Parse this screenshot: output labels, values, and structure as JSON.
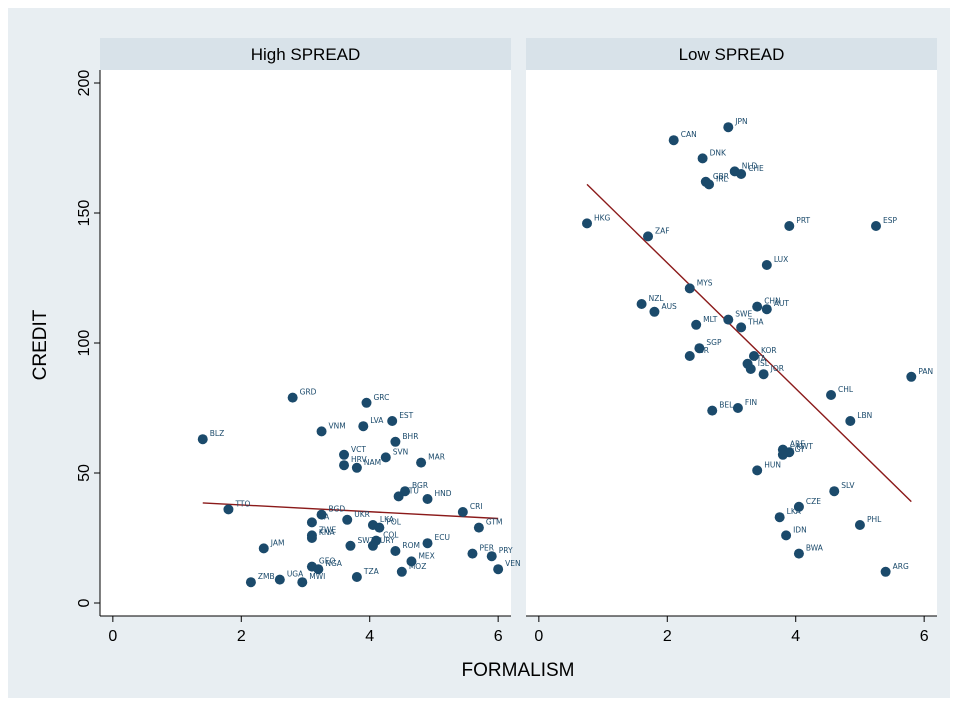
{
  "colors": {
    "figure_bg": "#e8eef2",
    "strip_bg": "#d8e2e9",
    "panel_bg": "#ffffff",
    "marker": "#1b4a6b",
    "label_text": "#1b4a6b",
    "fit_line": "#8b1a1a",
    "axis": "#000000"
  },
  "chart_data": {
    "type": "scatter",
    "xlabel": "FORMALISM",
    "ylabel": "CREDIT",
    "xlim": [
      -0.2,
      6.2
    ],
    "ylim": [
      -5,
      205
    ],
    "xticks": [
      "0",
      "2",
      "4",
      "6"
    ],
    "yticks": [
      "0",
      "50",
      "100",
      "150",
      "200"
    ],
    "grid": false,
    "legend": "none",
    "panels": [
      {
        "title": "High SPREAD",
        "fit_line": {
          "x": [
            1.4,
            6.0
          ],
          "y": [
            38.5,
            32.5
          ]
        },
        "points": [
          {
            "label": "GRD",
            "x": 2.8,
            "y": 79
          },
          {
            "label": "GRC",
            "x": 3.95,
            "y": 77
          },
          {
            "label": "BLZ",
            "x": 1.4,
            "y": 63
          },
          {
            "label": "VNM",
            "x": 3.25,
            "y": 66
          },
          {
            "label": "LVA",
            "x": 3.9,
            "y": 68
          },
          {
            "label": "EST",
            "x": 4.35,
            "y": 70
          },
          {
            "label": "BHR",
            "x": 4.4,
            "y": 62
          },
          {
            "label": "VCT",
            "x": 3.6,
            "y": 57
          },
          {
            "label": "SVN",
            "x": 4.25,
            "y": 56
          },
          {
            "label": "HRV",
            "x": 3.6,
            "y": 53
          },
          {
            "label": "NAM",
            "x": 3.8,
            "y": 52
          },
          {
            "label": "MAR",
            "x": 4.8,
            "y": 54
          },
          {
            "label": "TTO",
            "x": 1.8,
            "y": 36
          },
          {
            "label": "BGR",
            "x": 4.55,
            "y": 43
          },
          {
            "label": "LTU",
            "x": 4.45,
            "y": 41
          },
          {
            "label": "HND",
            "x": 4.9,
            "y": 40
          },
          {
            "label": "CRI",
            "x": 5.45,
            "y": 35
          },
          {
            "label": "BGD",
            "x": 3.25,
            "y": 34
          },
          {
            "label": "CA",
            "x": 3.1,
            "y": 31
          },
          {
            "label": "UKR",
            "x": 3.65,
            "y": 32
          },
          {
            "label": "LKA",
            "x": 4.05,
            "y": 30
          },
          {
            "label": "POL",
            "x": 4.15,
            "y": 29
          },
          {
            "label": "GTM",
            "x": 5.7,
            "y": 29
          },
          {
            "label": "ZWE",
            "x": 3.1,
            "y": 26
          },
          {
            "label": "KNA",
            "x": 3.1,
            "y": 25
          },
          {
            "label": "COL",
            "x": 4.1,
            "y": 24
          },
          {
            "label": "SWZ",
            "x": 3.7,
            "y": 22
          },
          {
            "label": "URY",
            "x": 4.05,
            "y": 22
          },
          {
            "label": "ECU",
            "x": 4.9,
            "y": 23
          },
          {
            "label": "JAM",
            "x": 2.35,
            "y": 21
          },
          {
            "label": "ROM",
            "x": 4.4,
            "y": 20
          },
          {
            "label": "PER",
            "x": 5.6,
            "y": 19
          },
          {
            "label": "PRY",
            "x": 5.9,
            "y": 18
          },
          {
            "label": "MEX",
            "x": 4.65,
            "y": 16
          },
          {
            "label": "GEO",
            "x": 3.1,
            "y": 14
          },
          {
            "label": "NGA",
            "x": 3.2,
            "y": 13
          },
          {
            "label": "VEN",
            "x": 6.0,
            "y": 13
          },
          {
            "label": "MOZ",
            "x": 4.5,
            "y": 12
          },
          {
            "label": "TZA",
            "x": 3.8,
            "y": 10
          },
          {
            "label": "ZMB",
            "x": 2.15,
            "y": 8
          },
          {
            "label": "UGA",
            "x": 2.6,
            "y": 9
          },
          {
            "label": "MWI",
            "x": 2.95,
            "y": 8
          }
        ]
      },
      {
        "title": "Low SPREAD",
        "fit_line": {
          "x": [
            0.75,
            5.8
          ],
          "y": [
            161,
            39
          ]
        },
        "points": [
          {
            "label": "JPN",
            "x": 2.95,
            "y": 183
          },
          {
            "label": "CAN",
            "x": 2.1,
            "y": 178
          },
          {
            "label": "DNK",
            "x": 2.55,
            "y": 171
          },
          {
            "label": "NLD",
            "x": 3.05,
            "y": 166
          },
          {
            "label": "CHE",
            "x": 3.15,
            "y": 165
          },
          {
            "label": "GBR",
            "x": 2.6,
            "y": 162
          },
          {
            "label": "IRL",
            "x": 2.65,
            "y": 161
          },
          {
            "label": "HKG",
            "x": 0.75,
            "y": 146
          },
          {
            "label": "ZAF",
            "x": 1.7,
            "y": 141
          },
          {
            "label": "PRT",
            "x": 3.9,
            "y": 145
          },
          {
            "label": "ESP",
            "x": 5.25,
            "y": 145
          },
          {
            "label": "LUX",
            "x": 3.55,
            "y": 130
          },
          {
            "label": "MYS",
            "x": 2.35,
            "y": 121
          },
          {
            "label": "NZL",
            "x": 1.6,
            "y": 115
          },
          {
            "label": "AUS",
            "x": 1.8,
            "y": 112
          },
          {
            "label": "CHN",
            "x": 3.4,
            "y": 114
          },
          {
            "label": "AUT",
            "x": 3.55,
            "y": 113
          },
          {
            "label": "SWE",
            "x": 2.95,
            "y": 109
          },
          {
            "label": "MLT",
            "x": 2.45,
            "y": 107
          },
          {
            "label": "THA",
            "x": 3.15,
            "y": 106
          },
          {
            "label": "SGP",
            "x": 2.5,
            "y": 98
          },
          {
            "label": "ISR",
            "x": 2.35,
            "y": 95
          },
          {
            "label": "KOR",
            "x": 3.35,
            "y": 95
          },
          {
            "label": "ITA",
            "x": 3.25,
            "y": 92
          },
          {
            "label": "ISL",
            "x": 3.3,
            "y": 90
          },
          {
            "label": "JOR",
            "x": 3.5,
            "y": 88
          },
          {
            "label": "PAN",
            "x": 5.8,
            "y": 87
          },
          {
            "label": "CHL",
            "x": 4.55,
            "y": 80
          },
          {
            "label": "BEL",
            "x": 2.7,
            "y": 74
          },
          {
            "label": "FIN",
            "x": 3.1,
            "y": 75
          },
          {
            "label": "LBN",
            "x": 4.85,
            "y": 70
          },
          {
            "label": "ARE",
            "x": 3.8,
            "y": 59
          },
          {
            "label": "KWT",
            "x": 3.9,
            "y": 58
          },
          {
            "label": "EGY",
            "x": 3.8,
            "y": 57
          },
          {
            "label": "HUN",
            "x": 3.4,
            "y": 51
          },
          {
            "label": "SLV",
            "x": 4.6,
            "y": 43
          },
          {
            "label": "CZE",
            "x": 4.05,
            "y": 37
          },
          {
            "label": "LKA",
            "x": 3.75,
            "y": 33
          },
          {
            "label": "PHL",
            "x": 5.0,
            "y": 30
          },
          {
            "label": "IDN",
            "x": 3.85,
            "y": 26
          },
          {
            "label": "BWA",
            "x": 4.05,
            "y": 19
          },
          {
            "label": "ARG",
            "x": 5.4,
            "y": 12
          }
        ]
      }
    ]
  }
}
